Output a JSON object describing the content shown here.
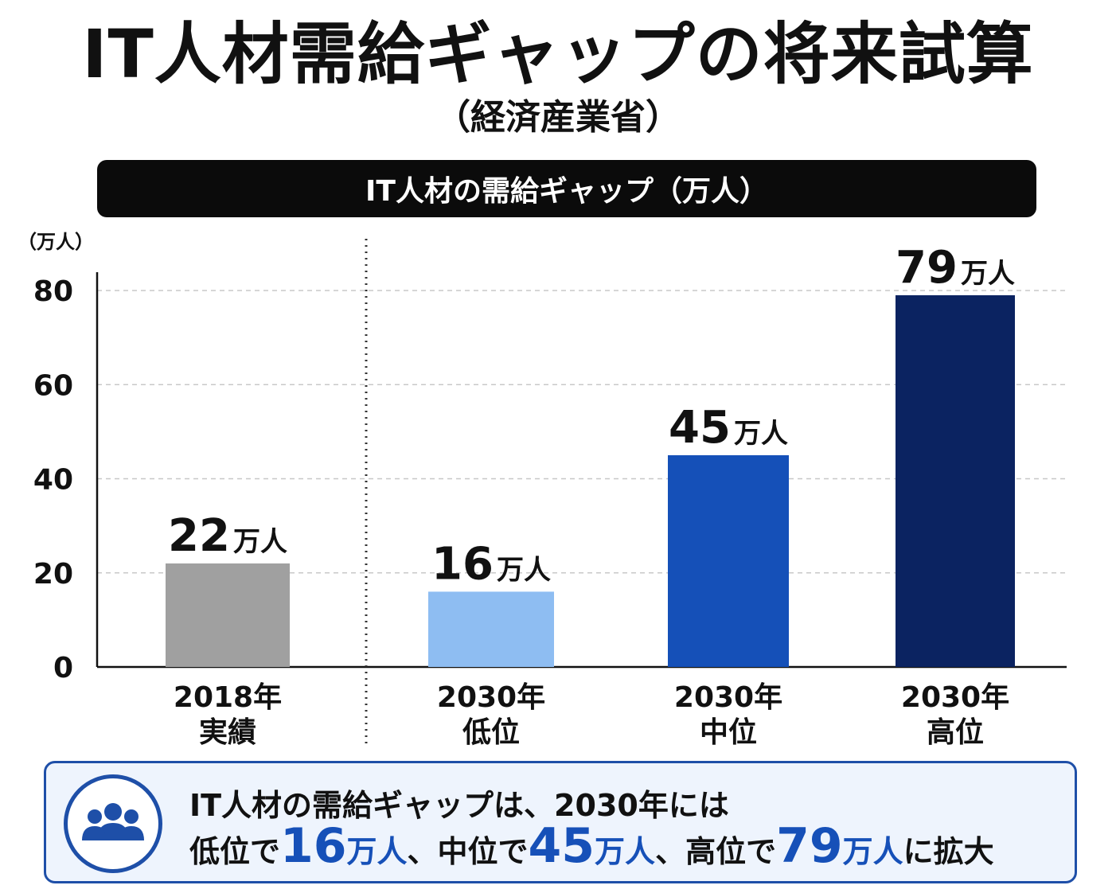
{
  "title": "IT人材需給ギャップの将来試算",
  "subtitle": "（経済産業省）",
  "banner": "IT人材の需給ギャップ（万人）",
  "chart_data": {
    "type": "bar",
    "y_unit_label": "（万人）",
    "ylim": [
      0,
      80
    ],
    "yticks": [
      0,
      20,
      40,
      60,
      80
    ],
    "grid": true,
    "categories": [
      {
        "line1": "2018年",
        "line2": "実績"
      },
      {
        "line1": "2030年",
        "line2": "低位"
      },
      {
        "line1": "2030年",
        "line2": "中位"
      },
      {
        "line1": "2030年",
        "line2": "高位"
      }
    ],
    "values": [
      22,
      16,
      45,
      79
    ],
    "value_labels": [
      "22",
      "16",
      "45",
      "79"
    ],
    "value_unit": "万人",
    "colors": [
      "#a0a0a0",
      "#8ebdf2",
      "#1550b8",
      "#0b2361"
    ]
  },
  "note": {
    "icon": "people-group-icon",
    "line1": "IT人材の需給ギャップは、2030年には",
    "seg1": "低位で",
    "val1": "16",
    "unit1": "万人",
    "seg2": "、中位で",
    "val2": "45",
    "unit2": "万人",
    "seg3": "、高位で",
    "val3": "79",
    "unit3": "万人",
    "seg4": "に拡大",
    "accent": "#1650b8"
  }
}
